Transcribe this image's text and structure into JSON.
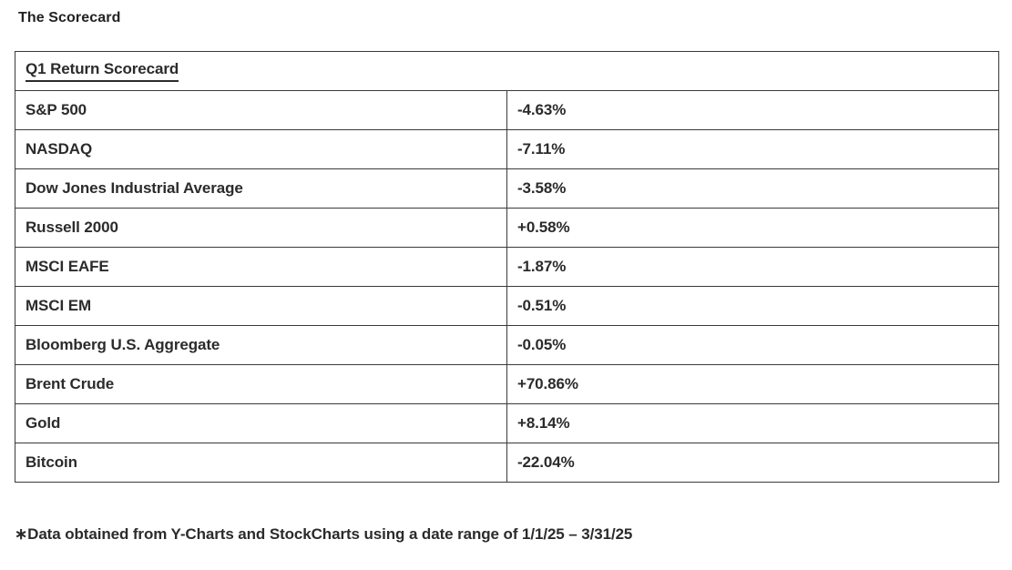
{
  "page": {
    "title": "The Scorecard",
    "footnote": "∗Data obtained from Y-Charts and StockCharts using a date range of 1/1/25 – 3/31/25"
  },
  "chart_data": {
    "type": "table",
    "title": "Q1 Return Scorecard",
    "rows": [
      {
        "name": "S&P 500",
        "value": "-4.63%"
      },
      {
        "name": "NASDAQ",
        "value": "-7.11%"
      },
      {
        "name": "Dow Jones Industrial Average",
        "value": "-3.58%"
      },
      {
        "name": "Russell 2000",
        "value": "+0.58%"
      },
      {
        "name": "MSCI EAFE",
        "value": "-1.87%"
      },
      {
        "name": "MSCI EM",
        "value": "-0.51%"
      },
      {
        "name": "Bloomberg U.S. Aggregate",
        "value": "-0.05%"
      },
      {
        "name": "Brent Crude",
        "value": "+70.86%"
      },
      {
        "name": "Gold",
        "value": "+8.14%"
      },
      {
        "name": "Bitcoin",
        "value": "-22.04%"
      }
    ],
    "layout": {
      "columns": 2,
      "border_color": "#3a3a3a",
      "text_color": "#2b2b2b",
      "header_underlined": true
    }
  }
}
